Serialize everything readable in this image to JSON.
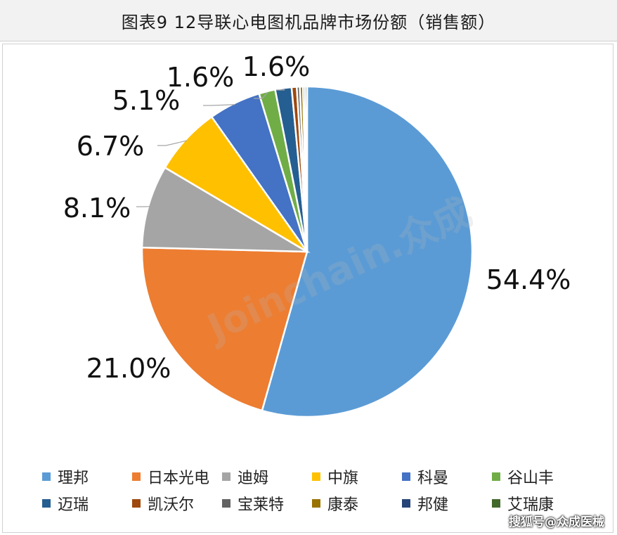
{
  "title": "图表9  12导联心电图机品牌市场份额（销售额）",
  "watermark": "Joinchain.众成",
  "source_tag": "搜狐号@众成医械",
  "chart_data": {
    "type": "pie",
    "title": "图表9  12导联心电图机品牌市场份额（销售额）",
    "legend_position": "bottom",
    "series": [
      {
        "name": "理邦",
        "value": 54.4,
        "label": "54.4%",
        "color": "#5b9bd5"
      },
      {
        "name": "日本光电",
        "value": 21.0,
        "label": "21.0%",
        "color": "#ed7d31"
      },
      {
        "name": "迪姆",
        "value": 8.1,
        "label": "8.1%",
        "color": "#a5a5a5"
      },
      {
        "name": "中旗",
        "value": 6.7,
        "label": "6.7%",
        "color": "#ffc000"
      },
      {
        "name": "科曼",
        "value": 5.1,
        "label": "5.1%",
        "color": "#4472c4"
      },
      {
        "name": "谷山丰",
        "value": 1.6,
        "label": "1.6%",
        "color": "#70ad47"
      },
      {
        "name": "迈瑞",
        "value": 1.6,
        "label": "1.6%",
        "color": "#255e91"
      },
      {
        "name": "凯沃尔",
        "value": 0.5,
        "label": "",
        "color": "#9e480e"
      },
      {
        "name": "宝莱特",
        "value": 0.3,
        "label": "",
        "color": "#636363"
      },
      {
        "name": "康泰",
        "value": 0.3,
        "label": "",
        "color": "#997300"
      },
      {
        "name": "邦健",
        "value": 0.2,
        "label": "",
        "color": "#264478"
      },
      {
        "name": "艾瑞康",
        "value": 0.2,
        "label": "",
        "color": "#43682b"
      }
    ]
  }
}
